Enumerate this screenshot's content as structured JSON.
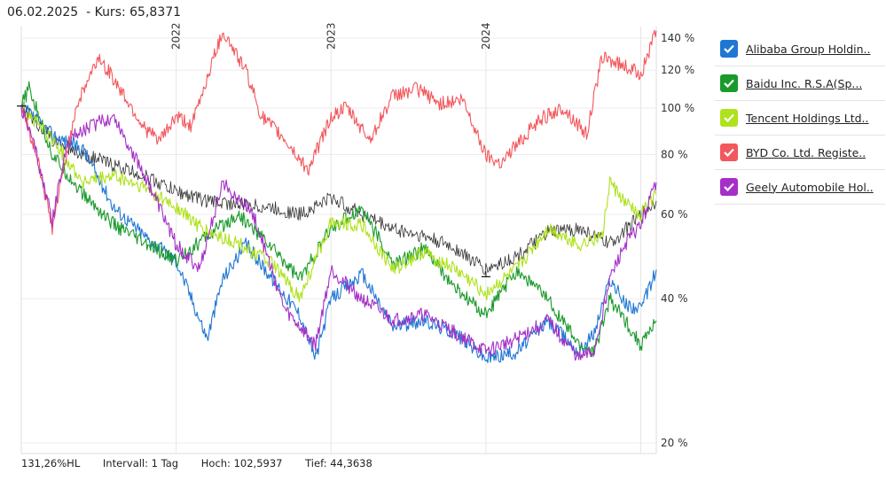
{
  "header": {
    "date": "06.02.2025",
    "price_text": "- Kurs: 65,8371"
  },
  "footer": {
    "hl": "131,26%HL",
    "interval": "Intervall: 1 Tag",
    "high": "Hoch: 102,5937",
    "low": "Tief: 44,3638"
  },
  "legend": [
    {
      "label": "Alibaba Group Holdin..",
      "color": "#1f77d4"
    },
    {
      "label": "Baidu Inc. R.S.A(Sp...",
      "color": "#1a9a2c"
    },
    {
      "label": "Tencent Holdings Ltd..",
      "color": "#aee21c"
    },
    {
      "label": "BYD Co. Ltd. Registe..",
      "color": "#f2575c"
    },
    {
      "label": "Geely Automobile Hol..",
      "color": "#a52fc8"
    }
  ],
  "chart_data": {
    "type": "line",
    "y_scale": "log",
    "ylim": [
      19,
      148
    ],
    "y_ticks": [
      {
        "value": 20,
        "label": "20 %"
      },
      {
        "value": 40,
        "label": "40 %"
      },
      {
        "value": 60,
        "label": "60 %"
      },
      {
        "value": 80,
        "label": "80 %"
      },
      {
        "value": 100,
        "label": "100 %"
      },
      {
        "value": 120,
        "label": "120 %"
      },
      {
        "value": 140,
        "label": "140 %"
      }
    ],
    "x_range": [
      2021.0,
      2025.1
    ],
    "x_ticks": [
      {
        "value": 2022,
        "label": "2022"
      },
      {
        "value": 2023,
        "label": "2023"
      },
      {
        "value": 2024,
        "label": "2024"
      },
      {
        "value": 2025,
        "label": ""
      }
    ],
    "reference": {
      "name": "",
      "color": "#333333",
      "x": [
        2021.0,
        2021.2,
        2021.4,
        2021.6,
        2021.8,
        2022.0,
        2022.2,
        2022.4,
        2022.6,
        2022.8,
        2023.0,
        2023.2,
        2023.4,
        2023.6,
        2023.8,
        2024.0,
        2024.2,
        2024.4,
        2024.6,
        2024.8,
        2025.1
      ],
      "values": [
        101,
        86,
        80,
        76,
        72,
        67,
        64,
        63,
        62,
        60,
        65,
        60,
        56,
        54,
        51,
        46,
        49,
        55,
        56,
        52,
        64
      ]
    },
    "series": [
      {
        "name": "Alibaba Group Holdin..",
        "color": "#1f77d4",
        "x": [
          2021.0,
          2021.2,
          2021.4,
          2021.6,
          2021.8,
          2022.0,
          2022.1,
          2022.2,
          2022.3,
          2022.45,
          2022.6,
          2022.8,
          2022.9,
          2023.0,
          2023.2,
          2023.4,
          2023.6,
          2023.8,
          2024.0,
          2024.2,
          2024.4,
          2024.6,
          2024.7,
          2024.8,
          2024.9,
          2025.0,
          2025.1
        ],
        "values": [
          101,
          88,
          82,
          62,
          54,
          48,
          40,
          33,
          44,
          52,
          45,
          37,
          30,
          40,
          45,
          35,
          36,
          34,
          30,
          31,
          36,
          31,
          34,
          44,
          39,
          38,
          46
        ]
      },
      {
        "name": "Baidu Inc. R.S.A(Sp...",
        "color": "#1a9a2c",
        "x": [
          2021.0,
          2021.05,
          2021.2,
          2021.4,
          2021.6,
          2021.8,
          2022.0,
          2022.2,
          2022.4,
          2022.6,
          2022.8,
          2023.0,
          2023.2,
          2023.4,
          2023.6,
          2023.8,
          2024.0,
          2024.2,
          2024.4,
          2024.6,
          2024.7,
          2024.8,
          2024.9,
          2025.0,
          2025.1
        ],
        "values": [
          101,
          110,
          80,
          66,
          57,
          52,
          48,
          54,
          60,
          52,
          44,
          56,
          62,
          47,
          51,
          42,
          37,
          46,
          40,
          32,
          31,
          40,
          36,
          32,
          36
        ]
      },
      {
        "name": "Tencent Holdings Ltd..",
        "color": "#aee21c",
        "x": [
          2021.0,
          2021.2,
          2021.4,
          2021.6,
          2021.8,
          2022.0,
          2022.2,
          2022.4,
          2022.6,
          2022.8,
          2023.0,
          2023.2,
          2023.4,
          2023.6,
          2023.8,
          2024.0,
          2024.2,
          2024.4,
          2024.6,
          2024.75,
          2024.8,
          2024.9,
          2025.0,
          2025.1
        ],
        "values": [
          101,
          86,
          70,
          72,
          68,
          62,
          55,
          52,
          48,
          40,
          58,
          57,
          46,
          50,
          46,
          41,
          46,
          56,
          52,
          54,
          70,
          63,
          60,
          66
        ]
      },
      {
        "name": "BYD Co. Ltd. Registe..",
        "color": "#f2575c",
        "x": [
          2021.0,
          2021.1,
          2021.2,
          2021.35,
          2021.5,
          2021.65,
          2021.8,
          2021.9,
          2022.0,
          2022.1,
          2022.3,
          2022.45,
          2022.55,
          2022.7,
          2022.85,
          2023.0,
          2023.1,
          2023.25,
          2023.4,
          2023.55,
          2023.7,
          2023.85,
          2024.0,
          2024.1,
          2024.2,
          2024.35,
          2024.5,
          2024.65,
          2024.75,
          2024.85,
          2025.0,
          2025.1
        ],
        "values": [
          101,
          80,
          56,
          100,
          128,
          108,
          90,
          86,
          96,
          92,
          145,
          120,
          96,
          86,
          74,
          96,
          100,
          86,
          106,
          110,
          102,
          104,
          80,
          77,
          84,
          95,
          100,
          88,
          128,
          124,
          118,
          145
        ]
      },
      {
        "name": "Geely Automobile Hol..",
        "color": "#a52fc8",
        "x": [
          2021.0,
          2021.1,
          2021.2,
          2021.3,
          2021.45,
          2021.6,
          2021.8,
          2022.0,
          2022.15,
          2022.3,
          2022.5,
          2022.7,
          2022.9,
          2023.0,
          2023.2,
          2023.4,
          2023.6,
          2023.8,
          2024.0,
          2024.2,
          2024.4,
          2024.6,
          2024.7,
          2024.8,
          2024.9,
          2025.0,
          2025.1
        ],
        "values": [
          101,
          80,
          58,
          86,
          92,
          96,
          72,
          52,
          46,
          70,
          60,
          38,
          32,
          46,
          40,
          36,
          37,
          34,
          31,
          33,
          36,
          30,
          31,
          44,
          52,
          57,
          70
        ]
      }
    ]
  }
}
